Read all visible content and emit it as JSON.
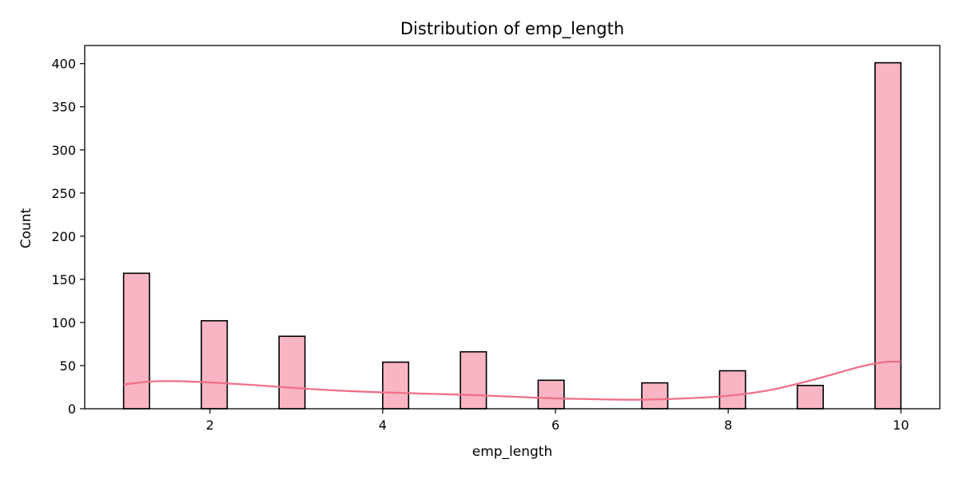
{
  "chart_data": {
    "type": "bar",
    "title": "Distribution of emp_length",
    "xlabel": "emp_length",
    "ylabel": "Count",
    "xlim": [
      0.55,
      10.45
    ],
    "ylim": [
      0,
      421
    ],
    "x_ticks": [
      2,
      4,
      6,
      8,
      10
    ],
    "y_ticks": [
      0,
      50,
      100,
      150,
      200,
      250,
      300,
      350,
      400
    ],
    "bin_width": 0.3,
    "bars": [
      {
        "x_start": 1.0,
        "value": 157
      },
      {
        "x_start": 1.9,
        "value": 102
      },
      {
        "x_start": 2.8,
        "value": 84
      },
      {
        "x_start": 4.0,
        "value": 54
      },
      {
        "x_start": 4.9,
        "value": 66
      },
      {
        "x_start": 5.8,
        "value": 33
      },
      {
        "x_start": 7.0,
        "value": 30
      },
      {
        "x_start": 7.9,
        "value": 44
      },
      {
        "x_start": 8.8,
        "value": 27
      },
      {
        "x_start": 9.7,
        "value": 401
      }
    ],
    "kde": {
      "x": [
        1.0,
        1.3,
        1.6,
        2.0,
        2.5,
        3.0,
        3.5,
        4.0,
        4.5,
        5.0,
        5.5,
        6.0,
        6.5,
        7.0,
        7.5,
        8.0,
        8.5,
        9.0,
        9.5,
        9.8,
        10.0
      ],
      "y": [
        28,
        31.5,
        32,
        30.5,
        27.5,
        24,
        21,
        19,
        17.5,
        16,
        14,
        12,
        11,
        10.5,
        12,
        15,
        22,
        34,
        48,
        54,
        54.5
      ]
    },
    "grid": false,
    "legend": "none",
    "colors": {
      "bar_fill": "#f9b5c4",
      "bar_edge": "#000000",
      "kde_line": "#f07088",
      "axis": "#000000"
    }
  }
}
